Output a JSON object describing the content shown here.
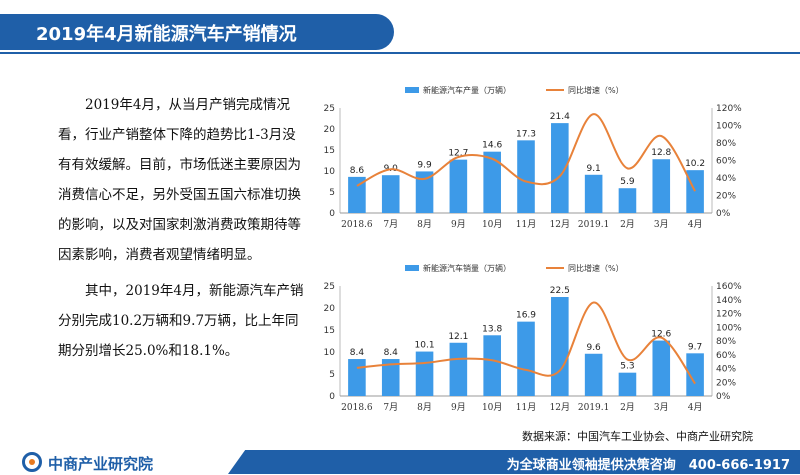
{
  "header": {
    "title": "2019年4月新能源汽车产销情况"
  },
  "body": {
    "paragraphs": [
      "2019年4月，从当月产销完成情况看，行业产销整体下降的趋势比1-3月没有有效缓解。目前，市场低迷主要原因为消费信心不足，另外受国五国六标准切换的影响，以及对国家刺激消费政策期待等因素影响，消费者观望情绪明显。",
      "其中，2019年4月，新能源汽车产销分别完成10.2万辆和9.7万辆，比上年同期分别增长25.0%和18.1%。"
    ]
  },
  "source": "数据来源：中国汽车工业协会、中商产业研究院",
  "footer": {
    "logo_text": "中商产业研究院",
    "slogan": "为全球商业领袖提供决策咨询　400-666-1917"
  },
  "colors": {
    "bar": "#3d9ae8",
    "line": "#e8823a",
    "brand": "#1f5fa8"
  },
  "chart_data": [
    {
      "type": "bar",
      "categories": [
        "2018.6",
        "7月",
        "8月",
        "9月",
        "10月",
        "11月",
        "12月",
        "2019.1",
        "2月",
        "3月",
        "4月"
      ],
      "series": [
        {
          "name": "新能源汽车产量（万辆）",
          "type": "bar",
          "axis": "left",
          "values": [
            8.6,
            9.0,
            9.9,
            12.7,
            14.6,
            17.3,
            21.4,
            9.1,
            5.9,
            12.8,
            10.2
          ],
          "labels": [
            "8.6",
            "9.0",
            "9.9",
            "12.7",
            "14.6",
            "17.3",
            "21.4",
            "9.1",
            "5.9",
            "12.8",
            "10.2"
          ]
        },
        {
          "name": "同比增速（%）",
          "type": "line",
          "axis": "right",
          "values": [
            31,
            50,
            39,
            64,
            62,
            36,
            42,
            113,
            51,
            88,
            25
          ]
        }
      ],
      "ylim": [
        0,
        25
      ],
      "yticks": [
        "0",
        "5",
        "10",
        "15",
        "20",
        "25"
      ],
      "y2lim": [
        0,
        120
      ],
      "y2ticks": [
        "0%",
        "20%",
        "40%",
        "60%",
        "80%",
        "100%",
        "120%"
      ],
      "legend": "top-center"
    },
    {
      "type": "bar",
      "categories": [
        "2018.6",
        "7月",
        "8月",
        "9月",
        "10月",
        "11月",
        "12月",
        "2019.1",
        "2月",
        "3月",
        "4月"
      ],
      "series": [
        {
          "name": "新能源汽车销量（万辆）",
          "type": "bar",
          "axis": "left",
          "values": [
            8.4,
            8.4,
            10.1,
            12.1,
            13.8,
            16.9,
            22.5,
            9.6,
            5.3,
            12.6,
            9.7
          ],
          "labels": [
            "8.4",
            "8.4",
            "10.1",
            "12.1",
            "13.8",
            "16.9",
            "22.5",
            "9.6",
            "5.3",
            "12.6",
            "9.7"
          ]
        },
        {
          "name": "同比增速（%）",
          "type": "line",
          "axis": "right",
          "values": [
            41,
            46,
            48,
            54,
            52,
            38,
            37,
            136,
            53,
            85,
            18
          ]
        }
      ],
      "ylim": [
        0,
        25
      ],
      "yticks": [
        "0",
        "5",
        "10",
        "15",
        "20",
        "25"
      ],
      "y2lim": [
        0,
        160
      ],
      "y2ticks": [
        "0%",
        "20%",
        "40%",
        "60%",
        "80%",
        "100%",
        "120%",
        "140%",
        "160%"
      ],
      "legend": "top-center"
    }
  ]
}
